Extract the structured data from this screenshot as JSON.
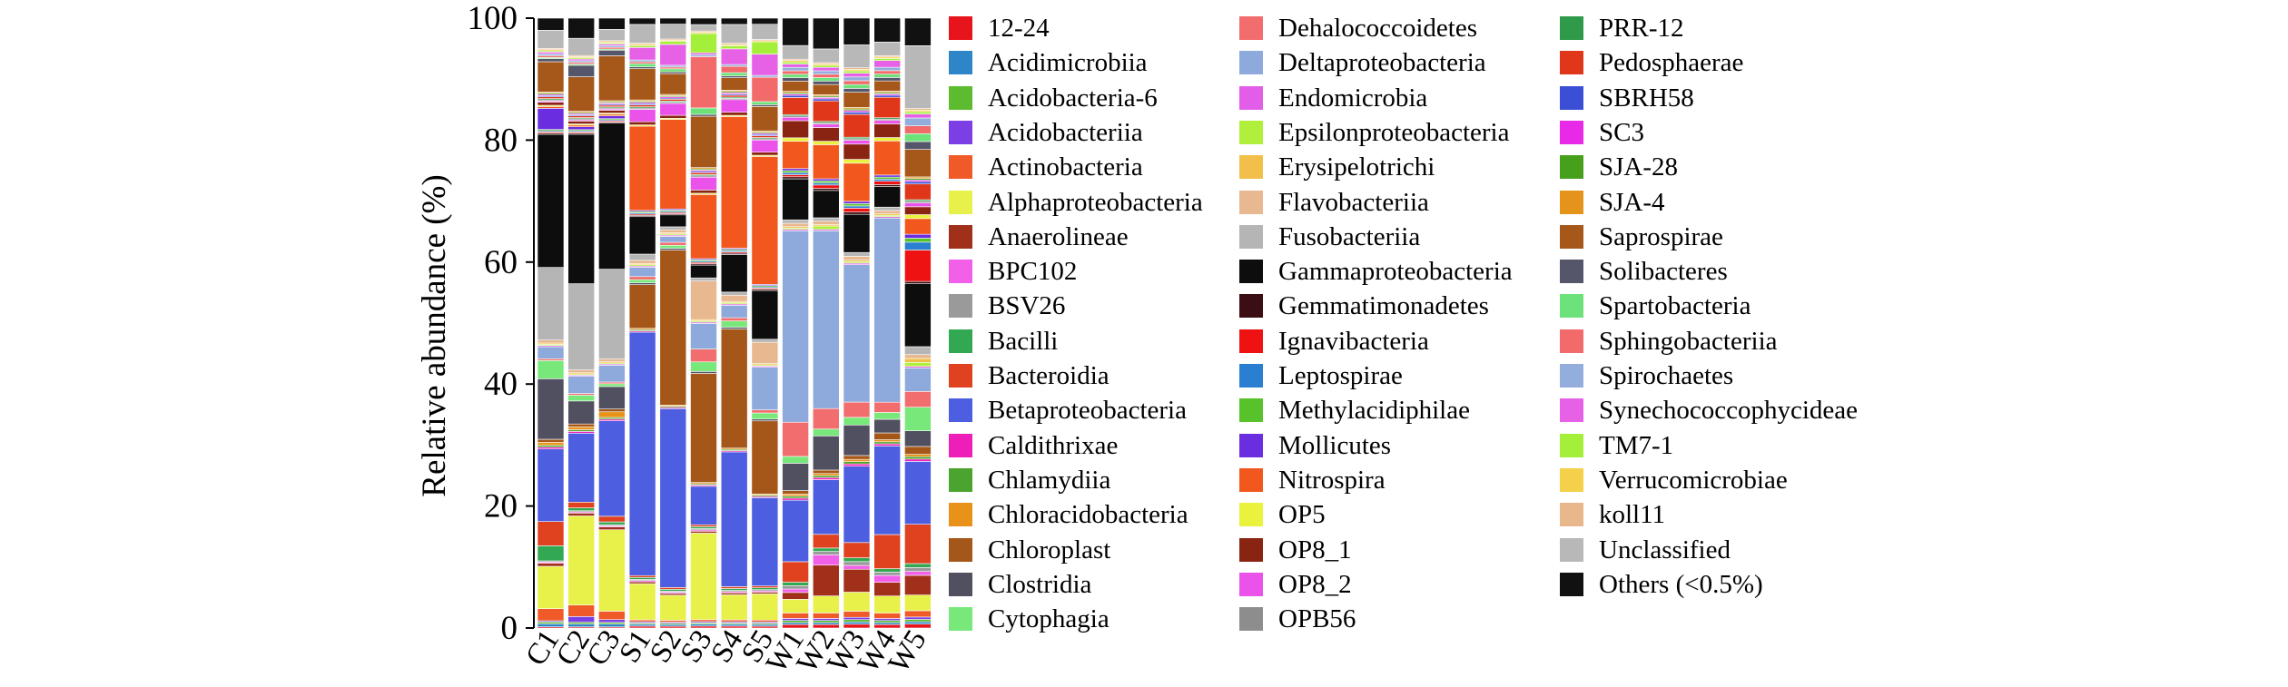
{
  "chart_data": {
    "type": "bar",
    "stacked": true,
    "ylabel": "Relative abundance (%)",
    "ylim": [
      0,
      100
    ],
    "yticks": [
      "0",
      "20",
      "40",
      "60",
      "80",
      "100"
    ],
    "categories": [
      "C1",
      "C2",
      "C3",
      "S1",
      "S2",
      "S3",
      "S4",
      "S5",
      "W1",
      "W2",
      "W3",
      "W4",
      "W5"
    ],
    "legend_position": "right",
    "series": [
      {
        "name": "12-24",
        "color": "#e8141c",
        "values": [
          0.2,
          0.2,
          0.2,
          0.3,
          0.3,
          0.3,
          0.3,
          0.3,
          0.5,
          0.5,
          0.5,
          0.5,
          0.5
        ]
      },
      {
        "name": "Acidimicrobiia",
        "color": "#2e86c8",
        "values": [
          0.5,
          0.5,
          0.5,
          0.3,
          0.3,
          0.3,
          0.3,
          0.3,
          0.3,
          0.3,
          0.3,
          0.3,
          0.3
        ]
      },
      {
        "name": "Acidobacteria-6",
        "color": "#5dbb2f",
        "values": [
          0.3,
          0.3,
          0.3,
          0.2,
          0.2,
          0.2,
          0.2,
          0.2,
          0.3,
          0.3,
          0.3,
          0.3,
          0.3
        ]
      },
      {
        "name": "Acidobacteriia",
        "color": "#7b3fe4",
        "values": [
          0.2,
          1.0,
          0.5,
          0.2,
          0.2,
          0.2,
          0.2,
          0.2,
          0.3,
          0.3,
          0.3,
          0.3,
          0.3
        ]
      },
      {
        "name": "Actinobacteria",
        "color": "#f05a28",
        "values": [
          2.0,
          2.0,
          1.5,
          0.3,
          0.3,
          0.3,
          0.3,
          0.3,
          0.8,
          0.8,
          0.8,
          0.8,
          0.8
        ]
      },
      {
        "name": "Alphaproteobacteria",
        "color": "#e8f04a",
        "values": [
          7.0,
          15.5,
          14.5,
          5.8,
          4.2,
          13.5,
          4.0,
          4.3,
          2.0,
          2.5,
          2.5,
          2.5,
          2.0
        ]
      },
      {
        "name": "Anaerolineae",
        "color": "#a0301a",
        "values": [
          0.5,
          0.5,
          0.5,
          0.3,
          0.3,
          0.3,
          0.3,
          0.3,
          1.0,
          4.5,
          3.0,
          2.0,
          2.5
        ]
      },
      {
        "name": "BPC102",
        "color": "#f25fe8",
        "values": [
          0.2,
          0.2,
          0.2,
          0.2,
          0.2,
          0.2,
          0.2,
          0.2,
          0.5,
          1.5,
          0.5,
          1.0,
          0.5
        ]
      },
      {
        "name": "BSV26",
        "color": "#9a9a9a",
        "values": [
          0.2,
          0.2,
          0.2,
          0.2,
          0.2,
          0.2,
          0.2,
          0.2,
          0.5,
          0.5,
          0.5,
          0.5,
          0.5
        ]
      },
      {
        "name": "Bacilli",
        "color": "#33a852",
        "values": [
          2.5,
          0.5,
          0.5,
          0.3,
          0.3,
          0.3,
          0.3,
          0.3,
          0.5,
          0.5,
          0.5,
          0.5,
          0.5
        ]
      },
      {
        "name": "Bacteroidia",
        "color": "#e0411f",
        "values": [
          4.0,
          1.0,
          1.0,
          0.3,
          0.3,
          0.3,
          0.3,
          0.3,
          3.0,
          2.0,
          2.0,
          5.0,
          5.0
        ]
      },
      {
        "name": "Betaproteobacteria",
        "color": "#4d5ee0",
        "values": [
          12.0,
          12.0,
          17.0,
          39.0,
          30.0,
          6.0,
          21.5,
          14.5,
          9.0,
          8.0,
          10.0,
          13.0,
          8.0
        ]
      },
      {
        "name": "Caldithrixae",
        "color": "#ee1fb8",
        "values": [
          0.3,
          0.3,
          0.3,
          0.2,
          0.2,
          0.2,
          0.2,
          0.2,
          0.3,
          0.3,
          0.3,
          0.3,
          0.3
        ]
      },
      {
        "name": "Chlamydiia",
        "color": "#4aa42d",
        "values": [
          0.3,
          0.3,
          0.3,
          0.2,
          0.2,
          0.2,
          0.2,
          0.2,
          0.3,
          0.3,
          0.3,
          0.3,
          0.3
        ]
      },
      {
        "name": "Chloracidobacteria",
        "color": "#e8921a",
        "values": [
          0.5,
          0.5,
          1.0,
          0.2,
          0.2,
          0.2,
          0.2,
          0.2,
          0.3,
          0.3,
          0.3,
          0.3,
          0.3
        ]
      },
      {
        "name": "Chloroplast",
        "color": "#a5571a",
        "values": [
          0.5,
          0.5,
          0.5,
          7.0,
          26.0,
          17.0,
          19.0,
          12.0,
          0.5,
          0.5,
          0.5,
          1.0,
          1.0
        ]
      },
      {
        "name": "Clostridia",
        "color": "#505060",
        "values": [
          10.0,
          4.0,
          4.0,
          0.3,
          0.3,
          0.3,
          0.3,
          0.3,
          4.0,
          5.0,
          4.0,
          2.0,
          2.0
        ]
      },
      {
        "name": "Cytophagia",
        "color": "#78e87a",
        "values": [
          3.0,
          1.0,
          0.5,
          0.5,
          0.5,
          1.5,
          1.0,
          1.0,
          1.0,
          1.0,
          1.0,
          1.0,
          3.0
        ]
      },
      {
        "name": "Dehalococcoidetes",
        "color": "#f26d6d",
        "values": [
          0.3,
          0.3,
          0.3,
          0.5,
          0.5,
          2.0,
          0.5,
          0.5,
          5.0,
          3.0,
          2.0,
          1.5,
          2.0
        ]
      },
      {
        "name": "Deltaproteobacteria",
        "color": "#8ea9dc",
        "values": [
          2.0,
          3.0,
          3.0,
          1.5,
          1.0,
          4.0,
          2.0,
          7.0,
          28.0,
          26.0,
          18.0,
          27.0,
          3.0
        ]
      },
      {
        "name": "Endomicrobia",
        "color": "#e25ee8",
        "values": [
          0.2,
          0.2,
          0.2,
          0.2,
          0.2,
          0.2,
          0.2,
          0.2,
          0.2,
          0.2,
          0.2,
          0.2,
          0.2
        ]
      },
      {
        "name": "Epsilonproteobacteria",
        "color": "#b0ef3c",
        "values": [
          0.2,
          0.2,
          0.2,
          0.2,
          0.2,
          0.2,
          0.2,
          0.2,
          0.2,
          0.5,
          0.2,
          0.2,
          0.5
        ]
      },
      {
        "name": "Erysipelotrichi",
        "color": "#f2c04a",
        "values": [
          0.2,
          0.2,
          0.2,
          0.2,
          0.2,
          0.2,
          0.2,
          0.2,
          0.2,
          0.2,
          0.2,
          0.2,
          0.5
        ]
      },
      {
        "name": "Flavobacteriia",
        "color": "#e8b890",
        "values": [
          0.5,
          0.5,
          0.5,
          0.5,
          0.5,
          6.0,
          1.0,
          3.5,
          0.5,
          0.5,
          0.5,
          0.5,
          0.5
        ]
      },
      {
        "name": "Fusobacteriia",
        "color": "#b5b5b5",
        "values": [
          12.0,
          15.0,
          16.0,
          1.0,
          0.5,
          0.5,
          0.5,
          0.5,
          0.5,
          0.5,
          0.5,
          0.5,
          1.0
        ]
      },
      {
        "name": "Gammaproteobacteria",
        "color": "#0d0d0d",
        "values": [
          22.0,
          26.0,
          26.0,
          6.0,
          2.0,
          2.0,
          6.0,
          8.0,
          6.0,
          4.0,
          5.0,
          3.0,
          8.0
        ]
      },
      {
        "name": "Gemmatimonadetes",
        "color": "#3a0e12",
        "values": [
          0.2,
          0.2,
          0.2,
          0.2,
          0.2,
          0.2,
          0.2,
          0.2,
          0.3,
          0.3,
          0.3,
          0.3,
          0.3
        ]
      },
      {
        "name": "Ignavibacteria",
        "color": "#ee1212",
        "values": [
          0.2,
          0.2,
          0.2,
          0.2,
          0.2,
          0.2,
          0.2,
          0.2,
          0.3,
          0.5,
          0.5,
          0.5,
          4.0
        ]
      },
      {
        "name": "Leptospirae",
        "color": "#2a7fd0",
        "values": [
          0.2,
          0.2,
          0.2,
          0.2,
          0.2,
          0.2,
          0.2,
          0.2,
          0.3,
          0.3,
          0.3,
          0.3,
          1.0
        ]
      },
      {
        "name": "Methylacidiphilae",
        "color": "#57c22a",
        "values": [
          0.2,
          0.2,
          0.2,
          0.2,
          0.2,
          0.2,
          0.2,
          0.2,
          0.3,
          0.3,
          0.3,
          0.3,
          0.5
        ]
      },
      {
        "name": "Mollicutes",
        "color": "#6a2ee0",
        "values": [
          3.5,
          0.5,
          0.5,
          0.2,
          0.2,
          0.2,
          0.2,
          0.2,
          0.3,
          0.3,
          0.3,
          0.3,
          0.5
        ]
      },
      {
        "name": "Nitrospira",
        "color": "#f2581e",
        "values": [
          0.3,
          0.3,
          0.3,
          13.5,
          15.0,
          10.0,
          21.0,
          21.0,
          4.0,
          5.0,
          5.0,
          5.0,
          2.0
        ]
      },
      {
        "name": "OP5",
        "color": "#eaf23e",
        "values": [
          0.2,
          0.2,
          0.2,
          0.2,
          0.2,
          0.2,
          0.2,
          0.2,
          0.5,
          0.5,
          0.5,
          0.5,
          0.5
        ]
      },
      {
        "name": "OP8_1",
        "color": "#8a2412",
        "values": [
          0.5,
          0.5,
          0.5,
          0.5,
          0.5,
          0.5,
          0.5,
          0.5,
          2.5,
          2.0,
          2.0,
          2.0,
          1.0
        ]
      },
      {
        "name": "OP8_2",
        "color": "#ea52ea",
        "values": [
          0.2,
          0.2,
          0.2,
          2.0,
          2.0,
          2.0,
          2.0,
          2.0,
          0.5,
          0.5,
          0.5,
          0.5,
          0.5
        ]
      },
      {
        "name": "OPB56",
        "color": "#8d8d8d",
        "values": [
          0.2,
          0.2,
          0.2,
          0.2,
          0.2,
          0.2,
          0.2,
          0.2,
          0.2,
          0.2,
          0.2,
          0.2,
          0.2
        ]
      },
      {
        "name": "PRR-12",
        "color": "#2f9a4a",
        "values": [
          0.2,
          0.2,
          0.2,
          0.2,
          0.2,
          0.2,
          0.2,
          0.2,
          0.2,
          0.2,
          0.2,
          0.2,
          0.2
        ]
      },
      {
        "name": "Pedosphaerae",
        "color": "#e0371a",
        "values": [
          0.3,
          0.3,
          0.3,
          0.3,
          0.3,
          0.3,
          0.3,
          0.3,
          2.5,
          3.0,
          3.0,
          3.0,
          2.0
        ]
      },
      {
        "name": "SBRH58",
        "color": "#3a4fd6",
        "values": [
          0.2,
          0.2,
          0.2,
          0.2,
          0.2,
          0.2,
          0.2,
          0.2,
          0.3,
          0.3,
          0.3,
          0.3,
          0.3
        ]
      },
      {
        "name": "SC3",
        "color": "#e82ae8",
        "values": [
          0.2,
          0.2,
          0.2,
          0.2,
          0.2,
          0.2,
          0.2,
          0.2,
          0.2,
          0.2,
          0.2,
          0.2,
          0.2
        ]
      },
      {
        "name": "SJA-28",
        "color": "#47a01c",
        "values": [
          0.2,
          0.2,
          0.2,
          0.2,
          0.2,
          0.2,
          0.2,
          0.2,
          0.2,
          0.2,
          0.2,
          0.2,
          0.2
        ]
      },
      {
        "name": "SJA-4",
        "color": "#e4941a",
        "values": [
          0.2,
          0.2,
          0.2,
          0.2,
          0.2,
          0.2,
          0.2,
          0.2,
          0.2,
          0.2,
          0.2,
          0.2,
          0.2
        ]
      },
      {
        "name": "Saprospirae",
        "color": "#a6581a",
        "values": [
          5.0,
          6.0,
          8.0,
          5.0,
          3.5,
          8.0,
          2.0,
          4.0,
          1.5,
          1.5,
          2.0,
          1.5,
          3.5
        ]
      },
      {
        "name": "Solibacteres",
        "color": "#55566a",
        "values": [
          0.5,
          2.0,
          1.0,
          0.3,
          0.3,
          0.3,
          0.3,
          0.3,
          0.5,
          0.5,
          0.5,
          0.5,
          1.0
        ]
      },
      {
        "name": "Spartobacteria",
        "color": "#6ee27a",
        "values": [
          0.2,
          0.2,
          0.2,
          0.5,
          0.5,
          1.0,
          0.5,
          0.5,
          0.5,
          0.5,
          0.5,
          0.5,
          1.0
        ]
      },
      {
        "name": "Sphingobacteriia",
        "color": "#f26a6a",
        "values": [
          0.3,
          0.3,
          0.3,
          0.3,
          0.3,
          8.0,
          1.0,
          4.0,
          0.5,
          0.5,
          0.5,
          0.5,
          1.0
        ]
      },
      {
        "name": "Spirochaetes",
        "color": "#93aedc",
        "values": [
          0.3,
          0.3,
          0.3,
          0.3,
          0.3,
          0.3,
          0.3,
          0.3,
          0.5,
          0.5,
          0.5,
          0.5,
          1.0
        ]
      },
      {
        "name": "Synechococcophycideae",
        "color": "#e661e6",
        "values": [
          0.3,
          0.3,
          0.3,
          2.0,
          3.5,
          0.3,
          2.5,
          3.5,
          0.5,
          0.5,
          0.5,
          1.0,
          0.5
        ]
      },
      {
        "name": "TM7-1",
        "color": "#a4ef3a",
        "values": [
          0.2,
          0.2,
          0.2,
          0.3,
          0.5,
          3.0,
          0.5,
          2.0,
          0.3,
          0.3,
          0.3,
          0.3,
          0.3
        ]
      },
      {
        "name": "Verrucomicrobiae",
        "color": "#f5d04a",
        "values": [
          0.2,
          0.2,
          0.2,
          0.2,
          0.2,
          0.2,
          0.2,
          0.2,
          0.2,
          0.2,
          0.2,
          0.2,
          0.2
        ]
      },
      {
        "name": "koll11",
        "color": "#e8b88c",
        "values": [
          0.2,
          0.2,
          0.2,
          0.2,
          0.2,
          0.2,
          0.2,
          0.2,
          0.2,
          0.2,
          0.2,
          0.2,
          0.2
        ]
      },
      {
        "name": "Unclassified",
        "color": "#b8b8b8",
        "values": [
          3.0,
          3.0,
          2.0,
          3.0,
          2.5,
          1.0,
          3.0,
          2.5,
          2.0,
          2.0,
          3.0,
          2.0,
          8.0
        ]
      },
      {
        "name": "Others (<0.5%)",
        "color": "#111111",
        "values": [
          2.0,
          3.5,
          2.0,
          1.0,
          1.0,
          1.0,
          1.0,
          1.0,
          4.0,
          4.5,
          3.5,
          3.5,
          3.5
        ]
      }
    ]
  }
}
